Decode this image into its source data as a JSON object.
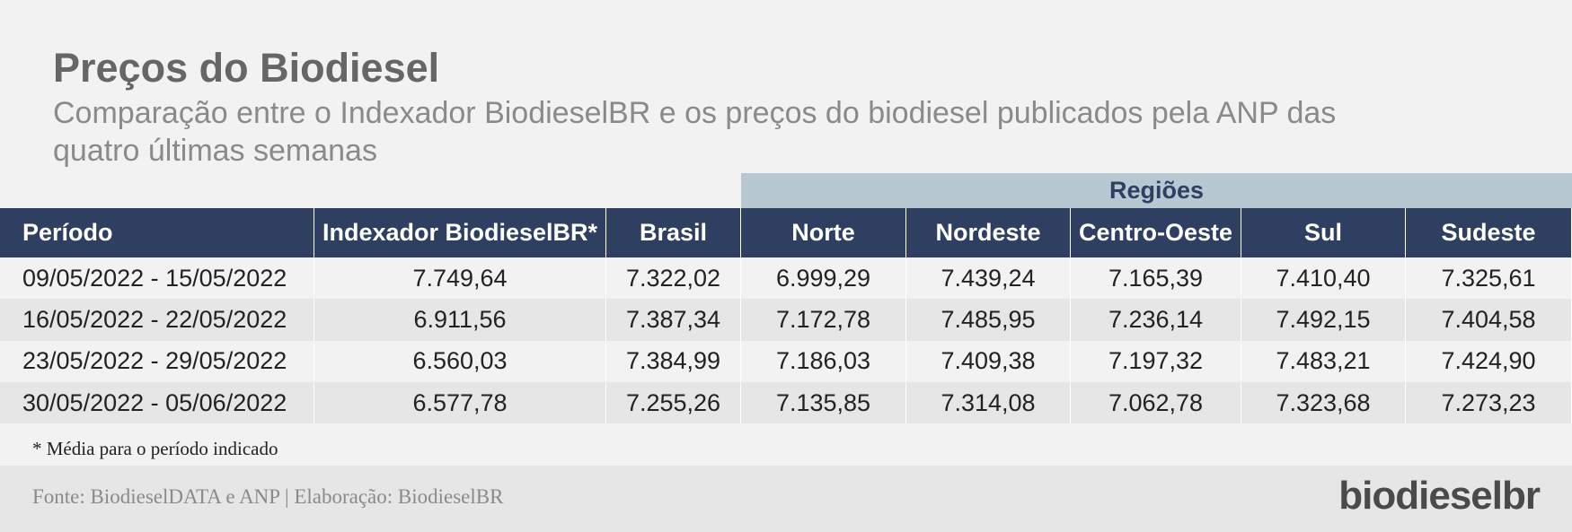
{
  "header": {
    "title": "Preços do Biodiesel",
    "subtitle": "Comparação entre o Indexador BiodieselBR e os preços do biodiesel publicados pela ANP das quatro últimas semanas"
  },
  "table": {
    "group_header": "Regiões",
    "columns": [
      "Período",
      "Indexador BiodieselBR*",
      "Brasil",
      "Norte",
      "Nordeste",
      "Centro-Oeste",
      "Sul",
      "Sudeste"
    ],
    "rows": [
      [
        "09/05/2022 - 15/05/2022",
        "7.749,64",
        "7.322,02",
        "6.999,29",
        "7.439,24",
        "7.165,39",
        "7.410,40",
        "7.325,61"
      ],
      [
        "16/05/2022 - 22/05/2022",
        "6.911,56",
        "7.387,34",
        "7.172,78",
        "7.485,95",
        "7.236,14",
        "7.492,15",
        "7.404,58"
      ],
      [
        "23/05/2022 - 29/05/2022",
        "6.560,03",
        "7.384,99",
        "7.186,03",
        "7.409,38",
        "7.197,32",
        "7.483,21",
        "7.424,90"
      ],
      [
        "30/05/2022 - 05/06/2022",
        "6.577,78",
        "7.255,26",
        "7.135,85",
        "7.314,08",
        "7.062,78",
        "7.323,68",
        "7.273,23"
      ]
    ]
  },
  "footnote": "* Média para o período indicado",
  "footer": {
    "source": "Fonte: BiodieselDATA e ANP | Elaboração: BiodieselBR",
    "logo": "biodieselbr"
  }
}
